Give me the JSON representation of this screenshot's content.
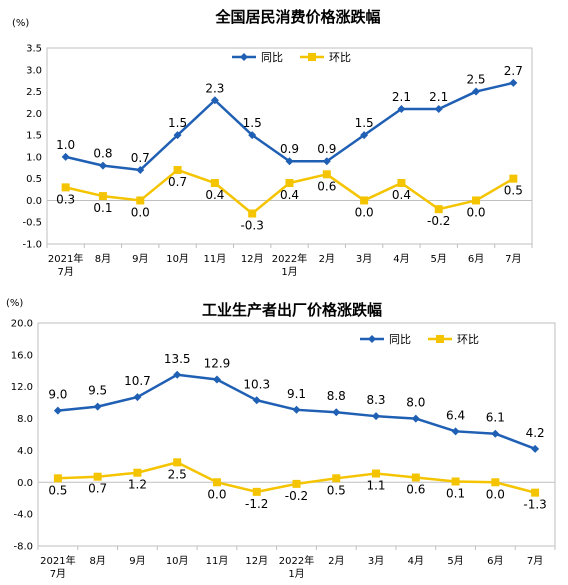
{
  "chart_data": [
    {
      "type": "line",
      "title": "全国居民消费价格涨跌幅",
      "unit": "(%)",
      "categories": [
        [
          "2021年",
          "7月"
        ],
        [
          "8月"
        ],
        [
          "9月"
        ],
        [
          "10月"
        ],
        [
          "11月"
        ],
        [
          "12月"
        ],
        [
          "2022年",
          "1月"
        ],
        [
          "2月"
        ],
        [
          "3月"
        ],
        [
          "4月"
        ],
        [
          "5月"
        ],
        [
          "6月"
        ],
        [
          "7月"
        ]
      ],
      "ylim": [
        -1.0,
        3.5
      ],
      "yticks": [
        "-1.0",
        "-0.5",
        "0.0",
        "0.5",
        "1.0",
        "1.5",
        "2.0",
        "2.5",
        "3.0",
        "3.5"
      ],
      "grid": false,
      "legend_position": "top-center",
      "series": [
        {
          "name": "同比",
          "color": "#1f5fb4",
          "marker": "diamond",
          "values": [
            1.0,
            0.8,
            0.7,
            1.5,
            2.3,
            1.5,
            0.9,
            0.9,
            1.5,
            2.1,
            2.1,
            2.5,
            2.7
          ],
          "labels": [
            "1.0",
            "0.8",
            "0.7",
            "1.5",
            "2.3",
            "1.5",
            "0.9",
            "0.9",
            "1.5",
            "2.1",
            "2.1",
            "2.5",
            "2.7"
          ]
        },
        {
          "name": "环比",
          "color": "#f5c400",
          "marker": "square",
          "values": [
            0.3,
            0.1,
            0.0,
            0.7,
            0.4,
            -0.3,
            0.4,
            0.6,
            0.0,
            0.4,
            -0.2,
            0.0,
            0.5
          ],
          "labels": [
            "0.3",
            "0.1",
            "0.0",
            "0.7",
            "0.4",
            "-0.3",
            "0.4",
            "0.6",
            "0.0",
            "0.4",
            "-0.2",
            "0.0",
            "0.5"
          ]
        }
      ]
    },
    {
      "type": "line",
      "title": "工业生产者出厂价格涨跌幅",
      "unit": "(%)",
      "categories": [
        [
          "2021年",
          "7月"
        ],
        [
          "8月"
        ],
        [
          "9月"
        ],
        [
          "10月"
        ],
        [
          "11月"
        ],
        [
          "12月"
        ],
        [
          "2022年",
          "1月"
        ],
        [
          "2月"
        ],
        [
          "3月"
        ],
        [
          "4月"
        ],
        [
          "5月"
        ],
        [
          "6月"
        ],
        [
          "7月"
        ]
      ],
      "ylim": [
        -8.0,
        20.0
      ],
      "yticks": [
        "-8.0",
        "-4.0",
        "0.0",
        "4.0",
        "8.0",
        "12.0",
        "16.0",
        "20.0"
      ],
      "grid": false,
      "legend_position": "top-right",
      "series": [
        {
          "name": "同比",
          "color": "#1f5fb4",
          "marker": "diamond",
          "values": [
            9.0,
            9.5,
            10.7,
            13.5,
            12.9,
            10.3,
            9.1,
            8.8,
            8.3,
            8.0,
            6.4,
            6.1,
            4.2
          ],
          "labels": [
            "9.0",
            "9.5",
            "10.7",
            "13.5",
            "12.9",
            "10.3",
            "9.1",
            "8.8",
            "8.3",
            "8.0",
            "6.4",
            "6.1",
            "4.2"
          ]
        },
        {
          "name": "环比",
          "color": "#f5c400",
          "marker": "square",
          "values": [
            0.5,
            0.7,
            1.2,
            2.5,
            0.0,
            -1.2,
            -0.2,
            0.5,
            1.1,
            0.6,
            0.1,
            0.0,
            -1.3
          ],
          "labels": [
            "0.5",
            "0.7",
            "1.2",
            "2.5",
            "0.0",
            "-1.2",
            "-0.2",
            "0.5",
            "1.1",
            "0.6",
            "0.1",
            "0.0",
            "-1.3"
          ]
        }
      ]
    }
  ]
}
